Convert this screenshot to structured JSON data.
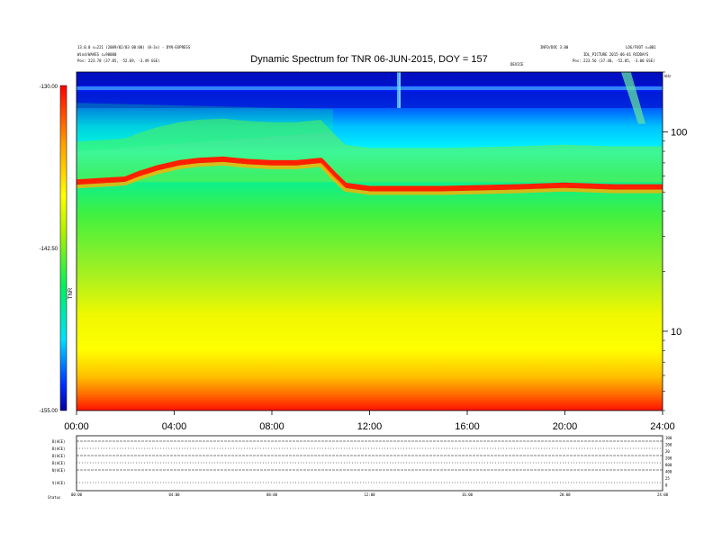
{
  "header": {
    "left_line_1": "13.0.0 s=221 (2009/02/03 00:00) (0-3x) - DYN-EXPRESS",
    "left_line_2": "Wind/WAVES s=90000",
    "left_line_3": "Pos: 223.78 (37.85, -52.69, -3.49 GSE)",
    "right_top_1": "INFO/DOC 3.00",
    "right_top_2": "LOG/FOOT s=001",
    "right_line_2": "IDL_PICTURE 2015-06-01 RCDDAYS",
    "right_line_3": "Pos: 223.56 (37.40, -52.85, -3.00 GSE)",
    "device_label": "DEVICE",
    "corner_label": "kHz"
  },
  "chart_data": {
    "type": "heatmap",
    "title": "Dynamic Spectrum for TNR 06-JUN-2015, DOY = 157",
    "colorbar": {
      "label": "TNR",
      "ticks": [
        "-130.00",
        "-142.50",
        "-155.00"
      ],
      "colors": [
        "#0000a0",
        "#0040ff",
        "#00e0ff",
        "#00f060",
        "#b0f000",
        "#ffff00",
        "#ffa000",
        "#ff0000"
      ]
    },
    "xticks": [
      "00:00",
      "04:00",
      "08:00",
      "12:00",
      "16:00",
      "20:00",
      "24:00"
    ],
    "xrange_hours": [
      0,
      24
    ],
    "yaxis": {
      "scale": "log",
      "ticks": [
        100,
        10
      ],
      "range_khz": [
        4,
        200
      ]
    },
    "plasma_line_khz": [
      {
        "t": 0.0,
        "f": 56
      },
      {
        "t": 2.0,
        "f": 58
      },
      {
        "t": 2.6,
        "f": 62
      },
      {
        "t": 3.3,
        "f": 66
      },
      {
        "t": 4.2,
        "f": 70
      },
      {
        "t": 5.0,
        "f": 72
      },
      {
        "t": 6.0,
        "f": 73
      },
      {
        "t": 7.0,
        "f": 71
      },
      {
        "t": 8.0,
        "f": 70
      },
      {
        "t": 9.0,
        "f": 70
      },
      {
        "t": 10.0,
        "f": 72
      },
      {
        "t": 10.5,
        "f": 62
      },
      {
        "t": 11.0,
        "f": 54
      },
      {
        "t": 12.0,
        "f": 52
      },
      {
        "t": 15.0,
        "f": 52
      },
      {
        "t": 18.0,
        "f": 53
      },
      {
        "t": 20.0,
        "f": 54
      },
      {
        "t": 22.0,
        "f": 53
      },
      {
        "t": 24.0,
        "f": 53
      }
    ],
    "bottom_panel": {
      "labels": [
        "B(ACE)",
        "B(ACE)",
        "B(ACE)",
        "B(ACE)",
        "N(ACE)",
        "V(ACE)",
        "Status"
      ],
      "right_labels": [
        "100",
        "200",
        "20",
        "200",
        "800",
        "400",
        "25",
        "0"
      ],
      "xticks": [
        "00:00",
        "04:00",
        "08:00",
        "12:00",
        "16:00",
        "20:00",
        "24:00"
      ]
    }
  }
}
